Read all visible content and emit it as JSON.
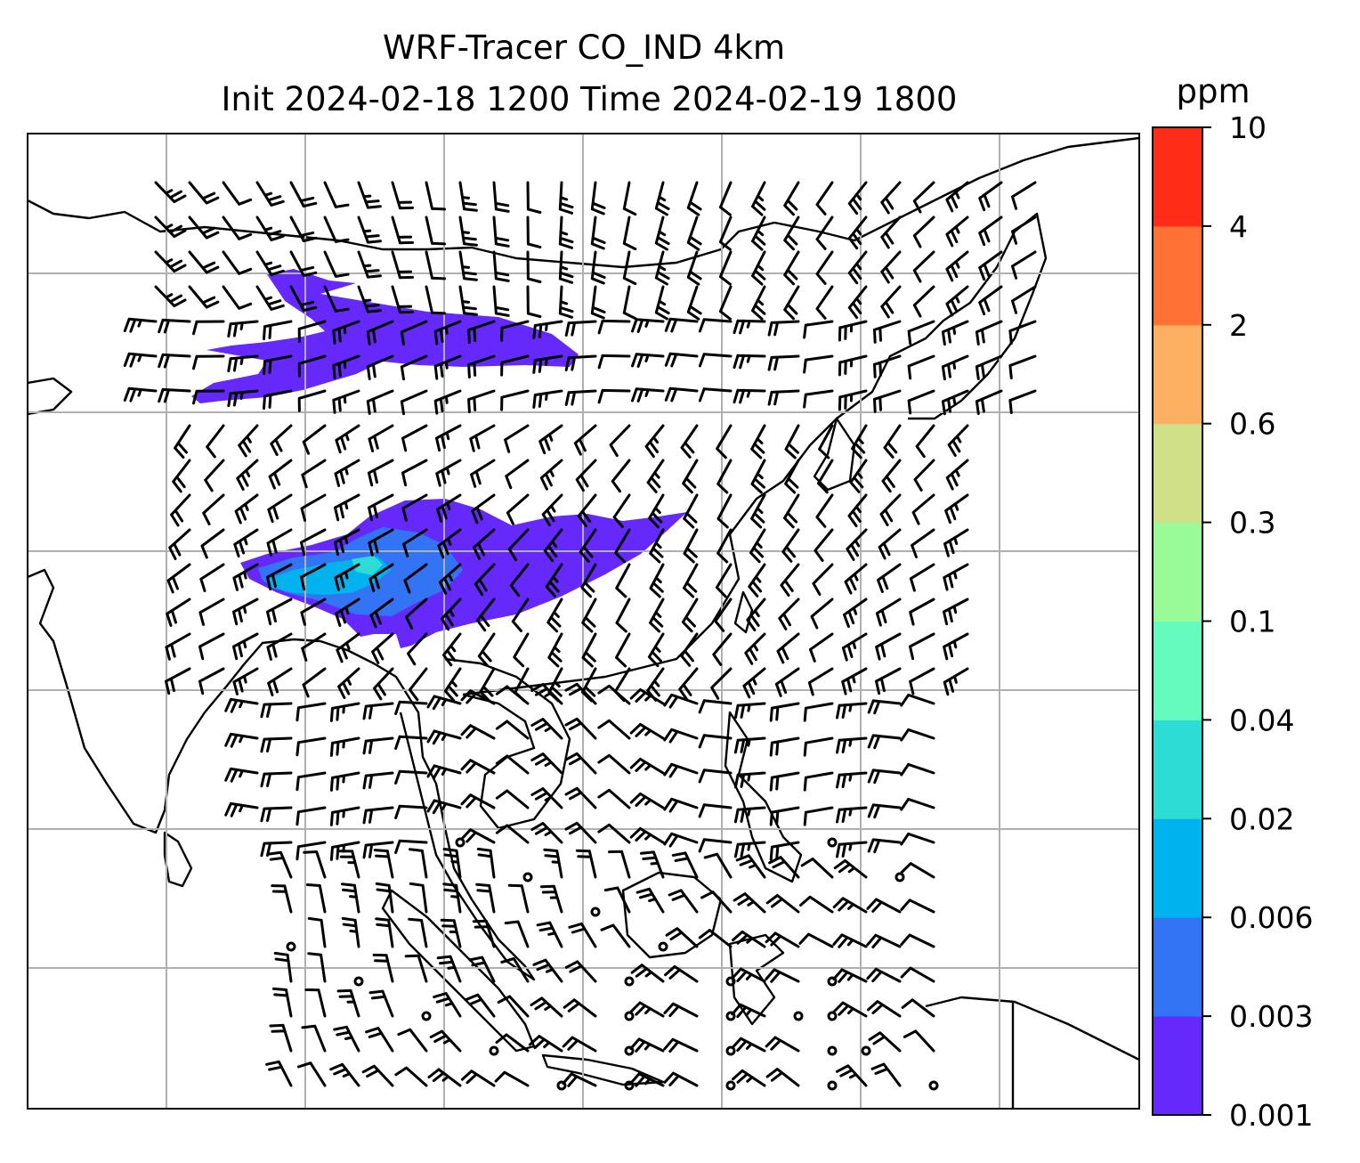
{
  "chart_data": {
    "type": "heatmap",
    "title": "WRF-Tracer CO_IND 4km",
    "subtitle": "Init 2024-02-18 1200 Time 2024-02-19 1800",
    "colorbar": {
      "label": "ppm",
      "ticks": [
        "0.001",
        "0.003",
        "0.006",
        "0.02",
        "0.04",
        "0.1",
        "0.3",
        "0.6",
        "2",
        "4",
        "10"
      ],
      "colors": [
        "#6529fb",
        "#3274f4",
        "#00b2ee",
        "#2ddcd5",
        "#66fbbe",
        "#98fb98",
        "#cfe088",
        "#fdb062",
        "#ff7135",
        "#ff2d17"
      ]
    },
    "overlay": "wind barbs",
    "grid": true,
    "plumes": [
      {
        "region": "north",
        "level": "0.001"
      },
      {
        "region": "central",
        "level": "0.001"
      },
      {
        "region": "central",
        "level": "0.003"
      },
      {
        "region": "central",
        "level": "0.006"
      },
      {
        "region": "central",
        "level": "0.02"
      }
    ]
  }
}
